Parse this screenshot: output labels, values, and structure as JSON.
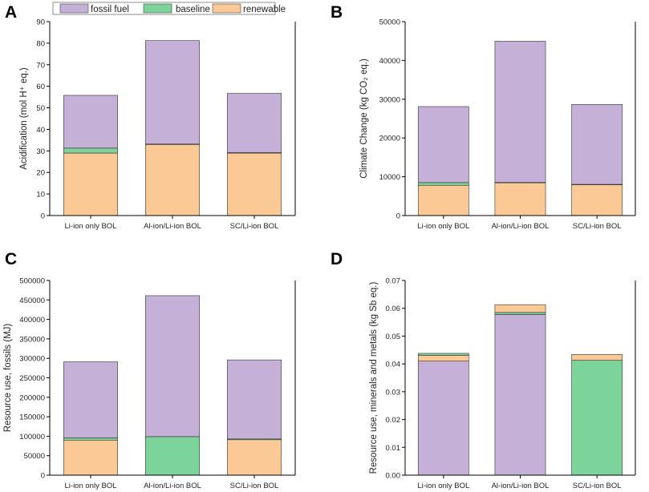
{
  "legend": {
    "items": [
      {
        "name": "fossil fuel",
        "color": "#c5b1d8"
      },
      {
        "name": "baseline",
        "color": "#7dd49a"
      },
      {
        "name": "renewable",
        "color": "#fbc995"
      }
    ]
  },
  "chart_data": [
    {
      "panel": "A",
      "type": "bar",
      "stacked": true,
      "ylabel": "Acidification (mol H⁺ eq.)",
      "ylim": [
        0,
        90
      ],
      "yticks": [
        0,
        10,
        20,
        30,
        40,
        50,
        60,
        70,
        80,
        90
      ],
      "ytick_labels": [
        "0",
        "10",
        "20",
        "30",
        "40",
        "50",
        "60",
        "70",
        "80",
        "90"
      ],
      "categories": [
        "Li-ion only BOL",
        "Al-ion/Li-ion BOL",
        "SC/Li-ion BOL"
      ],
      "series": [
        {
          "name": "renewable",
          "values": [
            29,
            33,
            29
          ]
        },
        {
          "name": "baseline",
          "values": [
            2.3,
            0.2,
            0.2
          ]
        },
        {
          "name": "fossil fuel",
          "values": [
            24.5,
            48,
            27.5
          ]
        }
      ]
    },
    {
      "panel": "B",
      "type": "bar",
      "stacked": true,
      "ylabel": "Climate Change (kg CO₂ eq.)",
      "ylim": [
        0,
        50000
      ],
      "yticks": [
        0,
        10000,
        20000,
        30000,
        40000,
        50000
      ],
      "ytick_labels": [
        "0",
        "10000",
        "20000",
        "30000",
        "40000",
        "50000"
      ],
      "categories": [
        "Li-ion only BOL",
        "Al-ion/Li-ion BOL",
        "SC/Li-ion BOL"
      ],
      "series": [
        {
          "name": "renewable",
          "values": [
            7800,
            8500,
            8000
          ]
        },
        {
          "name": "baseline",
          "values": [
            700,
            50,
            50
          ]
        },
        {
          "name": "fossil fuel",
          "values": [
            19600,
            36400,
            20600
          ]
        }
      ]
    },
    {
      "panel": "C",
      "type": "bar",
      "stacked": true,
      "ylabel": "Resource use, fossils (MJ)",
      "ylim": [
        0,
        500000
      ],
      "yticks": [
        0,
        50000,
        100000,
        150000,
        200000,
        250000,
        300000,
        350000,
        400000,
        450000,
        500000
      ],
      "ytick_labels": [
        "0",
        "50000",
        "100000",
        "150000",
        "200000",
        "250000",
        "300000",
        "350000",
        "400000",
        "450000",
        "500000"
      ],
      "categories": [
        "Li-ion only BOL",
        "Al-ion/Li-ion BOL",
        "SC/Li-ion BOL"
      ],
      "series": [
        {
          "name": "renewable",
          "values": [
            90000,
            0,
            91000
          ]
        },
        {
          "name": "baseline",
          "values": [
            6000,
            99000,
            2000
          ]
        },
        {
          "name": "fossil fuel",
          "values": [
            195000,
            362000,
            203000
          ]
        }
      ]
    },
    {
      "panel": "D",
      "type": "bar",
      "stacked": true,
      "ylabel": "Resource use, minerals and metals (kg Sb eq.)",
      "ylim": [
        0,
        0.07
      ],
      "yticks": [
        0,
        0.01,
        0.02,
        0.03,
        0.04,
        0.05,
        0.06,
        0.07
      ],
      "ytick_labels": [
        "0.00",
        "0.01",
        "0.02",
        "0.03",
        "0.04",
        "0.05",
        "0.06",
        "0.07"
      ],
      "categories": [
        "Li-ion only BOL",
        "Al-ion/Li-ion BOL",
        "SC/Li-ion BOL"
      ],
      "series": [
        {
          "name": "fossil fuel",
          "values": [
            0.041,
            0.0578,
            0
          ]
        },
        {
          "name": "renewable",
          "values": [
            0.0021,
            0,
            0
          ]
        },
        {
          "name": "baseline",
          "values": [
            0.0007,
            0.0007,
            0.0413
          ]
        },
        {
          "name": "renewable",
          "values": [
            0,
            0.0028,
            0.0021
          ]
        }
      ]
    }
  ]
}
